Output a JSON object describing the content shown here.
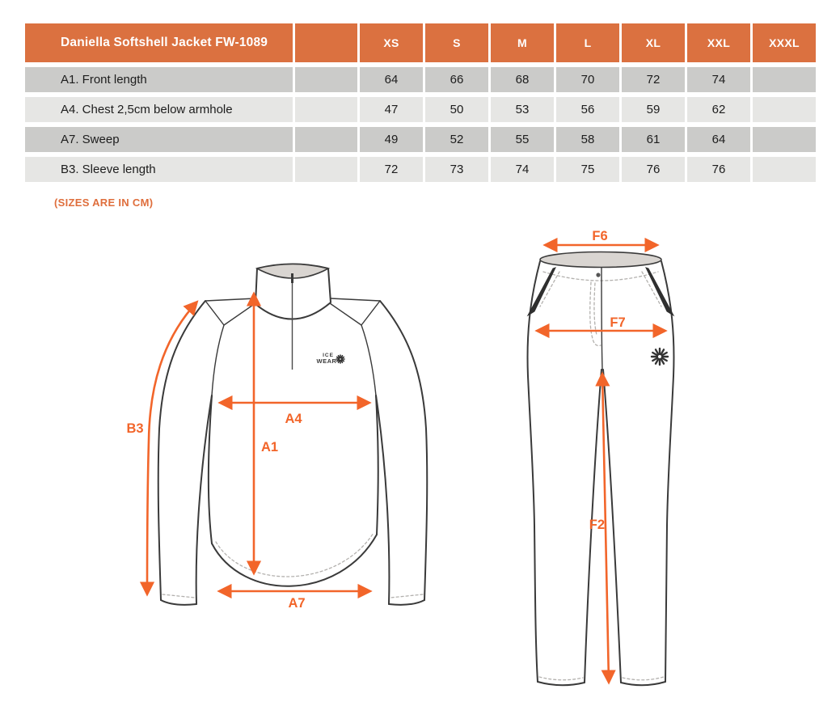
{
  "table": {
    "title": "Daniella Softshell Jacket FW-1089",
    "size_headers": [
      "XS",
      "S",
      "M",
      "L",
      "XL",
      "XXL",
      "XXXL"
    ],
    "rows": [
      {
        "label": "A1. Front length",
        "values": [
          "64",
          "66",
          "68",
          "70",
          "72",
          "74",
          ""
        ]
      },
      {
        "label": "A4. Chest 2,5cm below armhole",
        "values": [
          "47",
          "50",
          "53",
          "56",
          "59",
          "62",
          ""
        ]
      },
      {
        "label": "A7. Sweep",
        "values": [
          "49",
          "52",
          "55",
          "58",
          "61",
          "64",
          ""
        ]
      },
      {
        "label": "B3. Sleeve length",
        "values": [
          "72",
          "73",
          "74",
          "75",
          "76",
          "76",
          ""
        ]
      }
    ]
  },
  "note": "(SIZES ARE IN CM)",
  "jacket_diagram": {
    "logo": {
      "line1": "ICE",
      "line2": "WEAR"
    },
    "measurements": {
      "b3": "B3",
      "a4": "A4",
      "a1": "A1",
      "a7": "A7"
    }
  },
  "pants_diagram": {
    "measurements": {
      "f6": "F6",
      "f7": "F7",
      "f2": "F2"
    }
  },
  "colors": {
    "header_orange": "#DB7140",
    "row_dark": "#CBCBC9",
    "row_light": "#E6E6E4",
    "arrow_orange": "#F2652A",
    "note_orange": "#DF6E3C"
  }
}
